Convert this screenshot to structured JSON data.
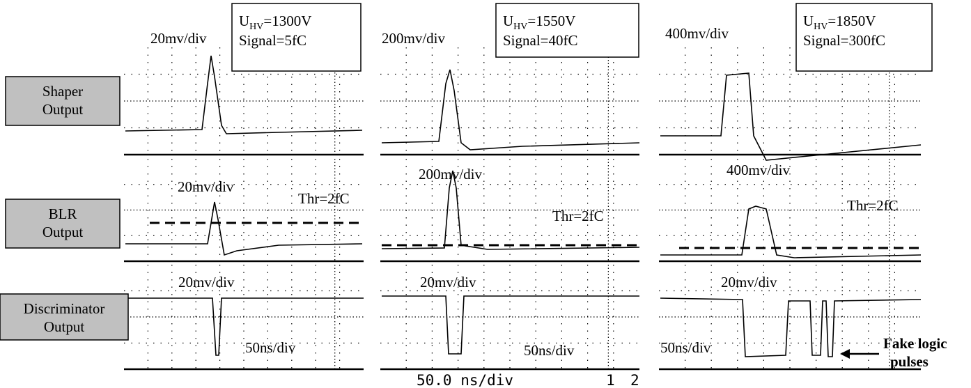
{
  "row_labels": [
    {
      "lines": [
        "Shaper",
        "Output"
      ]
    },
    {
      "lines": [
        "BLR",
        "Output"
      ]
    },
    {
      "lines": [
        "Discriminator",
        "Output"
      ]
    }
  ],
  "columns": [
    {
      "hv": {
        "symbol": "U",
        "subscript": "HV",
        "rest": "=1300V"
      },
      "signal": "Signal=5fC",
      "shaper_scale": "20mv/div",
      "blr_scale": "20mv/div",
      "threshold": "Thr=2fC",
      "disc_scale": "20mv/div",
      "time_scale": "50ns/div"
    },
    {
      "hv": {
        "symbol": "U",
        "subscript": "HV",
        "rest": "=1550V"
      },
      "signal": "Signal=40fC",
      "shaper_scale": "200mv/div",
      "blr_scale": "200mv/div",
      "threshold": "Thr=2fC",
      "disc_scale": "20mv/div",
      "time_scale": "50ns/div"
    },
    {
      "hv": {
        "symbol": "U",
        "subscript": "HV",
        "rest": "=1850V"
      },
      "signal": "Signal=300fC",
      "shaper_scale": "400mv/div",
      "blr_scale": "400mv/div",
      "threshold": "Thr=2fC",
      "disc_scale": "20mv/div",
      "time_scale": "50ns/div"
    }
  ],
  "annotation": {
    "lines": [
      "Fake logic",
      "pulses"
    ]
  },
  "scope_footer": {
    "time": "50.0 ns/div",
    "channel_a": "1",
    "channel_b": "2"
  }
}
